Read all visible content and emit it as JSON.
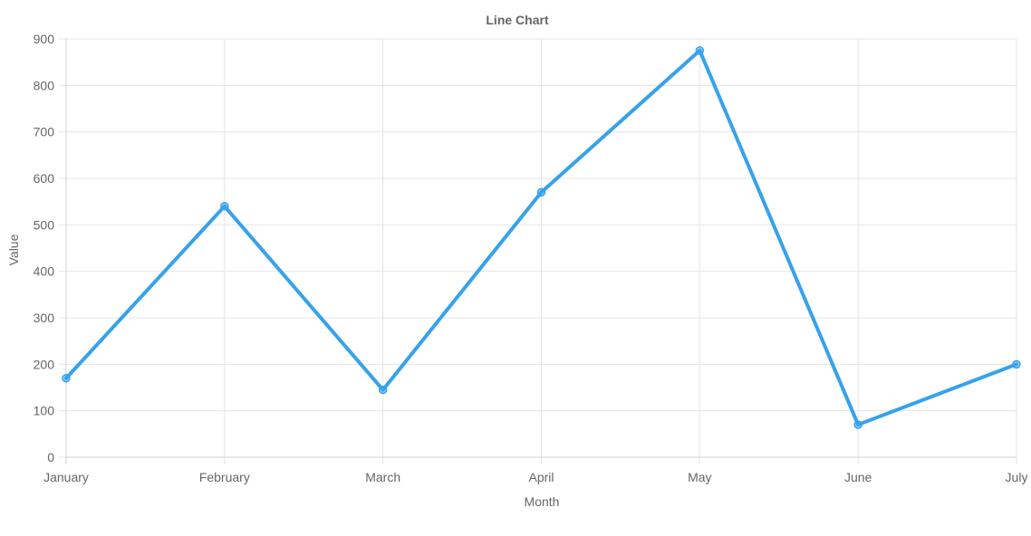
{
  "chart_data": {
    "type": "line",
    "title": "Line Chart",
    "xlabel": "Month",
    "ylabel": "Value",
    "categories": [
      "January",
      "February",
      "March",
      "April",
      "May",
      "June",
      "July"
    ],
    "series": [
      {
        "values": [
          170,
          540,
          145,
          570,
          875,
          70,
          200
        ],
        "color": "#36A2EB"
      }
    ],
    "ylim": [
      0,
      900
    ],
    "yticks": [
      0,
      100,
      200,
      300,
      400,
      500,
      600,
      700,
      800,
      900
    ],
    "grid": true,
    "legend": "none",
    "colors": {
      "grid": "#e5e5e5",
      "axis": "#d0d0d0",
      "text": "#666666",
      "series": "#36A2EB"
    }
  }
}
